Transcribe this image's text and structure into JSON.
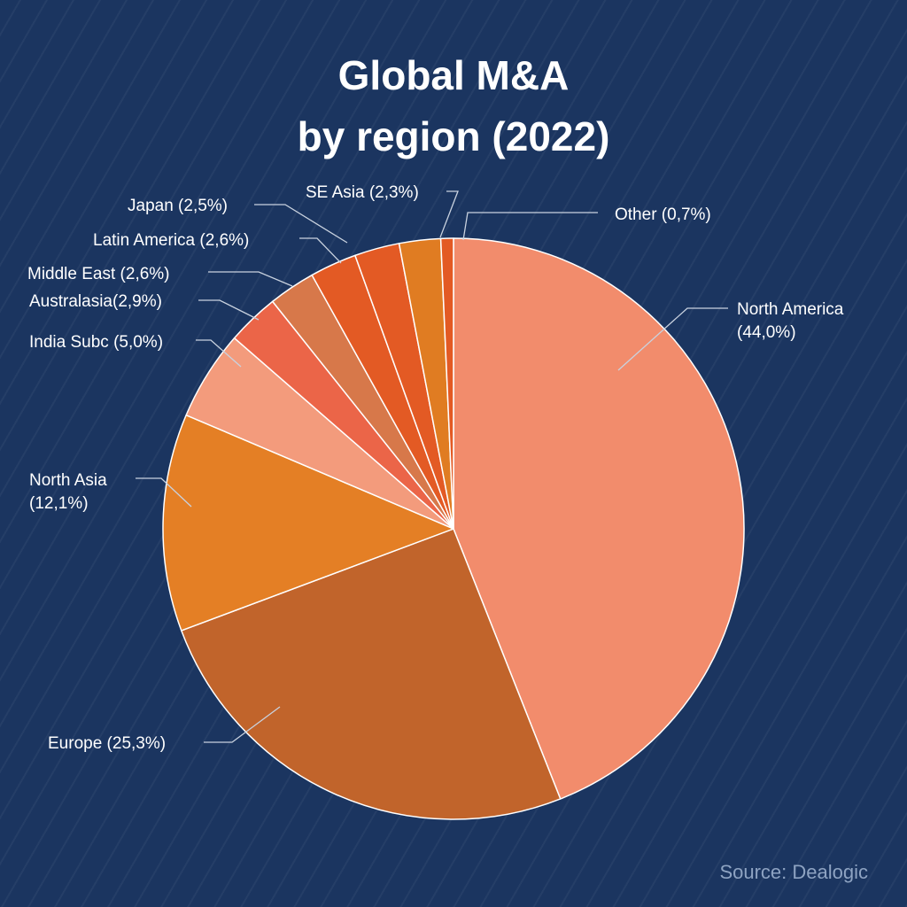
{
  "title_line1": "Global M&A",
  "title_line2": "by region (2022)",
  "source": "Source: Dealogic",
  "colors": {
    "background": "#1b3560",
    "label_text": "#ffffff",
    "leader_line": "#c9d2df",
    "slice_stroke": "#ffffff"
  },
  "chart_data": {
    "type": "pie",
    "title": "Global M&A by region (2022)",
    "unit": "%",
    "slices": [
      {
        "name": "North America",
        "value": 44.0,
        "label_lines": [
          "North America",
          "(44,0%)"
        ],
        "color": "#f28c6c"
      },
      {
        "name": "Europe",
        "value": 25.3,
        "label_lines": [
          "Europe (25,3%)"
        ],
        "color": "#c1642b"
      },
      {
        "name": "North Asia",
        "value": 12.1,
        "label_lines": [
          "North Asia",
          "(12,1%)"
        ],
        "color": "#e47f25"
      },
      {
        "name": "India Subc",
        "value": 5.0,
        "label_lines": [
          "India Subc (5,0%)"
        ],
        "color": "#f39b7c"
      },
      {
        "name": "Australasia",
        "value": 2.9,
        "label_lines": [
          "Australasia(2,9%)"
        ],
        "color": "#eb6548"
      },
      {
        "name": "Middle East",
        "value": 2.6,
        "label_lines": [
          "Middle East (2,6%)"
        ],
        "color": "#d7784a"
      },
      {
        "name": "Latin America",
        "value": 2.6,
        "label_lines": [
          "Latin America (2,6%)"
        ],
        "color": "#e35a24"
      },
      {
        "name": "Japan",
        "value": 2.5,
        "label_lines": [
          "Japan (2,5%)"
        ],
        "color": "#e35a24"
      },
      {
        "name": "SE Asia",
        "value": 2.3,
        "label_lines": [
          "SE Asia (2,3%)"
        ],
        "color": "#e07c22"
      },
      {
        "name": "Other",
        "value": 0.7,
        "label_lines": [
          "Other (0,7%)"
        ],
        "color": "#e35a24"
      }
    ]
  }
}
